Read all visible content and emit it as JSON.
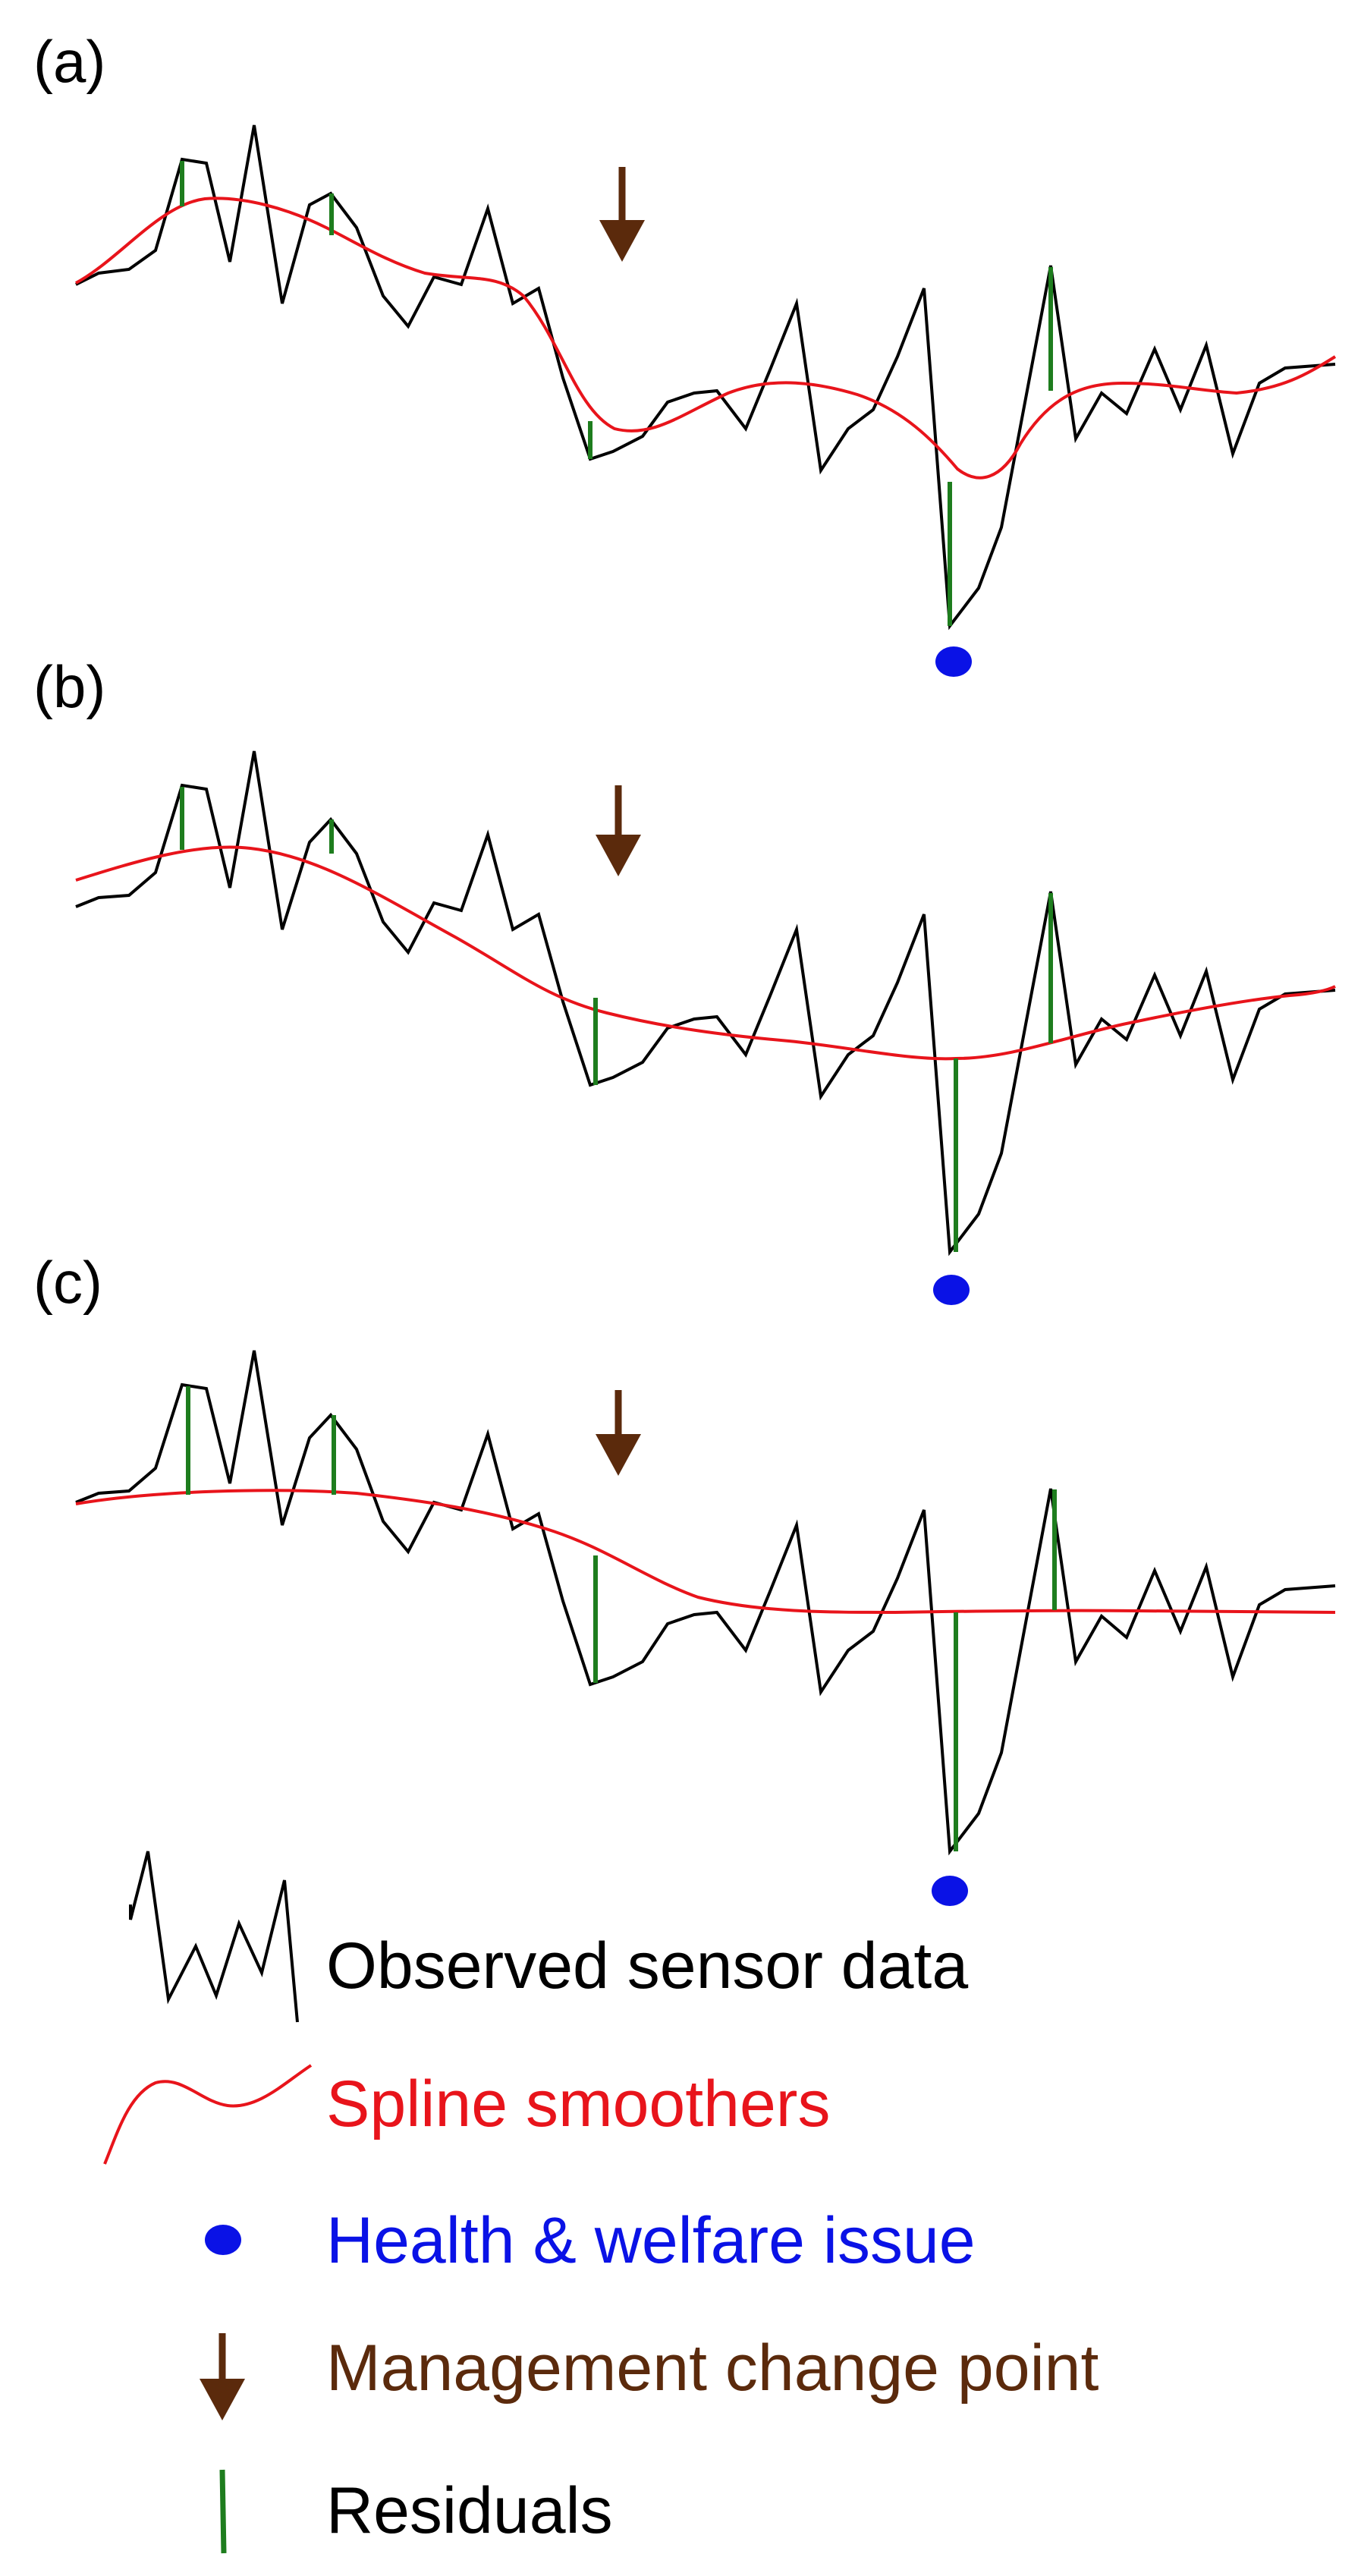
{
  "panels": [
    {
      "label": "(a)"
    },
    {
      "label": "(b)"
    },
    {
      "label": "(c)"
    }
  ],
  "legend": [
    {
      "label": "Observed sensor data",
      "color": "#000000",
      "icon": "observed-line-icon"
    },
    {
      "label": "Spline smoothers",
      "color": "#e8141b",
      "icon": "spline-curve-icon"
    },
    {
      "label": "Health & welfare issue",
      "color": "#0a12e6",
      "icon": "blue-dot-icon"
    },
    {
      "label": "Management change point",
      "color": "#5b2a0c",
      "icon": "down-arrow-icon"
    },
    {
      "label": "Residuals",
      "color": "#1e7d1e",
      "icon": "residual-bar-icon"
    }
  ],
  "colors": {
    "observed": "#000000",
    "spline": "#e8141b",
    "issue": "#0a12e6",
    "change_point": "#5b2a0c",
    "residual": "#1e7d1e"
  }
}
